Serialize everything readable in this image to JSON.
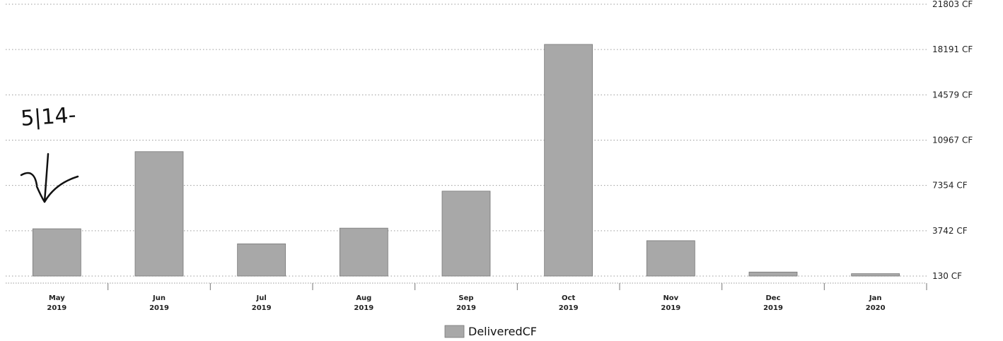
{
  "chart_data": {
    "type": "bar",
    "categories": [
      [
        "May",
        "2019"
      ],
      [
        "Jun",
        "2019"
      ],
      [
        "Jul",
        "2019"
      ],
      [
        "Aug",
        "2019"
      ],
      [
        "Sep",
        "2019"
      ],
      [
        "Oct",
        "2019"
      ],
      [
        "Nov",
        "2019"
      ],
      [
        "Dec",
        "2019"
      ],
      [
        "Jan",
        "2020"
      ]
    ],
    "series": [
      {
        "name": "DeliveredCF",
        "values": [
          3900,
          10050,
          2700,
          3950,
          6900,
          18600,
          2950,
          450,
          320
        ]
      }
    ],
    "yticks": [
      130,
      3742,
      7354,
      10967,
      14579,
      18191,
      21803
    ],
    "ytick_labels": [
      "130 CF",
      "3742 CF",
      "7354 CF",
      "10967 CF",
      "14579 CF",
      "18191 CF",
      "21803 CF"
    ],
    "ylim": [
      130,
      21803
    ],
    "grid": true,
    "legend_position": "bottom-center",
    "title": "",
    "xlabel": "",
    "ylabel": "",
    "bar_color": "#a8a8a8",
    "annotation_text": "5|14-"
  }
}
